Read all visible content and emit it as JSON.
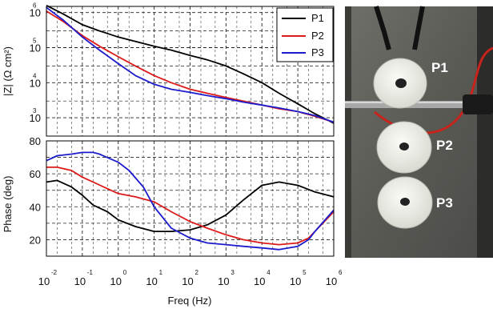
{
  "chart_data": [
    {
      "type": "line",
      "ylabel": "|Z| (Ω cm²)",
      "xscale": "log",
      "yscale": "log",
      "xlim": [
        0.01,
        1000000
      ],
      "ylim": [
        300,
        1500000
      ],
      "grid": true,
      "legend_position": "top-right",
      "x_ticks": [
        {
          "base": "10",
          "exp": "-2"
        },
        {
          "base": "10",
          "exp": "-1"
        },
        {
          "base": "10",
          "exp": "0"
        },
        {
          "base": "10",
          "exp": "1"
        },
        {
          "base": "10",
          "exp": "2"
        },
        {
          "base": "10",
          "exp": "3"
        },
        {
          "base": "10",
          "exp": "4"
        },
        {
          "base": "10",
          "exp": "5"
        },
        {
          "base": "10",
          "exp": "6"
        }
      ],
      "y_ticks": [
        {
          "value": 1000,
          "base": "10",
          "exp": "3"
        },
        {
          "value": 10000,
          "base": "10",
          "exp": "4"
        },
        {
          "value": 100000,
          "base": "10",
          "exp": "5"
        },
        {
          "value": 1000000,
          "base": "10",
          "exp": "6"
        }
      ],
      "series": [
        {
          "name": "P1",
          "color": "#000000",
          "x": [
            0.01,
            0.03,
            0.1,
            0.3,
            1,
            3,
            10,
            30,
            100,
            300,
            1000,
            3000,
            10000,
            30000,
            100000,
            300000,
            1000000
          ],
          "y": [
            1600000,
            900000,
            450000,
            300000,
            200000,
            150000,
            110000,
            85000,
            60000,
            45000,
            30000,
            18000,
            10000,
            5000,
            2500,
            1300,
            700
          ]
        },
        {
          "name": "P2",
          "color": "#dd1a1a",
          "x": [
            0.01,
            0.03,
            0.1,
            0.3,
            1,
            3,
            10,
            30,
            100,
            300,
            1000,
            3000,
            10000,
            30000,
            100000,
            300000,
            1000000
          ],
          "y": [
            1100000,
            550000,
            220000,
            110000,
            55000,
            30000,
            16000,
            10000,
            6500,
            5000,
            3800,
            3000,
            2300,
            1800,
            1500,
            1100,
            750
          ]
        },
        {
          "name": "P3",
          "color": "#1c1ccc",
          "x": [
            0.01,
            0.03,
            0.1,
            0.3,
            1,
            3,
            10,
            30,
            100,
            300,
            1000,
            3000,
            10000,
            30000,
            100000,
            300000,
            1000000
          ],
          "y": [
            1400000,
            600000,
            200000,
            85000,
            35000,
            16000,
            9000,
            6500,
            5300,
            4300,
            3500,
            2800,
            2300,
            1900,
            1500,
            1150,
            750
          ]
        }
      ]
    },
    {
      "type": "line",
      "xlabel": "Freq (Hz)",
      "ylabel": "Phase (deg)",
      "xscale": "log",
      "xlim": [
        0.01,
        1000000
      ],
      "ylim": [
        10,
        80
      ],
      "grid": true,
      "y_ticks": [
        20,
        40,
        60,
        80
      ],
      "series": [
        {
          "name": "P1",
          "color": "#000000",
          "x": [
            0.01,
            0.02,
            0.05,
            0.1,
            0.2,
            0.5,
            1,
            3,
            10,
            30,
            100,
            300,
            1000,
            3000,
            10000,
            30000,
            100000,
            300000,
            1000000
          ],
          "y": [
            55,
            56,
            52,
            47,
            41,
            37,
            32,
            28,
            25,
            25,
            26,
            29,
            35,
            44,
            53,
            55,
            53,
            49,
            46
          ]
        },
        {
          "name": "P2",
          "color": "#dd1a1a",
          "x": [
            0.01,
            0.02,
            0.05,
            0.1,
            0.2,
            0.5,
            1,
            3,
            10,
            30,
            100,
            300,
            1000,
            3000,
            10000,
            30000,
            100000,
            200000,
            300000,
            1000000
          ],
          "y": [
            64,
            64,
            62,
            58,
            55,
            51,
            48,
            46,
            43,
            37,
            31,
            27,
            23,
            20,
            18,
            17,
            18,
            21,
            25,
            37
          ]
        },
        {
          "name": "P3",
          "color": "#1c1ccc",
          "x": [
            0.01,
            0.02,
            0.05,
            0.1,
            0.2,
            0.3,
            1,
            2,
            5,
            10,
            30,
            100,
            300,
            1000,
            3000,
            10000,
            30000,
            100000,
            200000,
            300000,
            1000000
          ],
          "y": [
            68,
            71,
            72,
            73,
            73,
            72,
            67,
            62,
            52,
            40,
            27,
            21,
            18,
            17,
            16,
            15,
            14,
            16,
            20,
            25,
            38
          ]
        }
      ]
    }
  ],
  "photo": {
    "labels": [
      "P1",
      "P2",
      "P3"
    ]
  }
}
